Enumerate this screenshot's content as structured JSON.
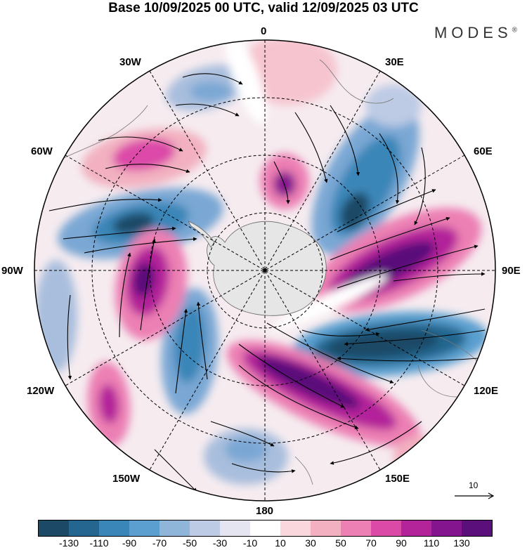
{
  "title": "Base 10/09/2025 00 UTC, valid 12/09/2025 03 UTC",
  "brand": "MODES",
  "brand_mark": "®",
  "longitude_labels": {
    "top": "0",
    "e30": "30E",
    "e60": "60E",
    "e90": "90E",
    "e120": "120E",
    "e150": "150E",
    "bottom": "180",
    "w150": "150W",
    "w120": "120W",
    "w90": "90W",
    "w60": "60W",
    "w30": "30W"
  },
  "reference_vector": {
    "label": "10"
  },
  "colorbar": {
    "labels": [
      "-130",
      "-110",
      "-90",
      "-70",
      "-50",
      "-30",
      "-10",
      "10",
      "30",
      "50",
      "70",
      "90",
      "110",
      "130"
    ],
    "colors": [
      "#1c4a66",
      "#24668f",
      "#3a86b8",
      "#5a9fcf",
      "#8fb6d9",
      "#bdcbe4",
      "#e4e5f1",
      "#ffffff",
      "#f9d7dd",
      "#f2b0c0",
      "#ec7fb3",
      "#dc4aa8",
      "#b3239a",
      "#85148f",
      "#5a0f7a"
    ]
  },
  "colors": {
    "land": "#e6e6e6",
    "grid": "#000000"
  }
}
